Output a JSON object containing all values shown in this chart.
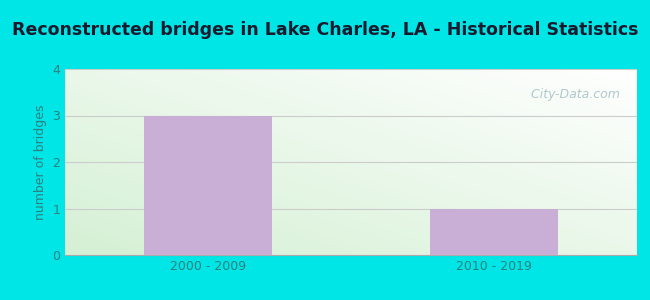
{
  "title": "Reconstructed bridges in Lake Charles, LA - Historical Statistics",
  "categories": [
    "2000 - 2009",
    "2010 - 2019"
  ],
  "values": [
    3,
    1
  ],
  "bar_color": "#c9aed6",
  "ylabel": "number of bridges",
  "ylim": [
    0,
    4
  ],
  "yticks": [
    0,
    1,
    2,
    3,
    4
  ],
  "background_outer": "#00e5e5",
  "plot_bg_topleft": "#d4f0d4",
  "plot_bg_topright": "#ffffff",
  "plot_bg_bottomleft": "#d4f0d4",
  "plot_bg_bottomright": "#ffffff",
  "grid_color": "#cccccc",
  "title_color": "#1a1a2e",
  "axis_label_color": "#2e8080",
  "tick_label_color": "#2e8080",
  "watermark_text": " City-Data.com",
  "watermark_color": "#b0c8cc",
  "title_fontsize": 12.5,
  "ylabel_fontsize": 9,
  "tick_fontsize": 9,
  "bar_positions": [
    0,
    1
  ],
  "bar_width": 0.45,
  "xlim": [
    -0.5,
    1.5
  ]
}
